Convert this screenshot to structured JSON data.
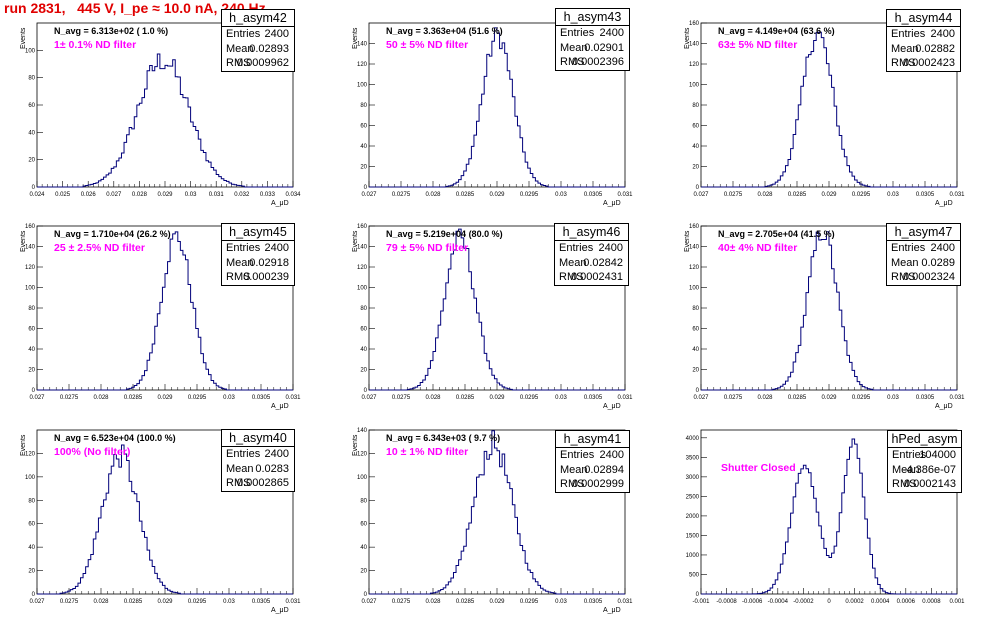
{
  "page_title": "run 2831,   445 V, I_pe ≈ 10.0 nA, 240 Hz",
  "chart_data": [
    {
      "type": "histogram",
      "stats_title": "h_asym42",
      "entries": "2400",
      "mean": "0.02893",
      "rms": "0.0009962",
      "navg": "N_avg = 6.313e+02 ( 1.0 %)",
      "filter_label": "1± 0.1% ND filter",
      "ylabel": "Events",
      "xlabel": "A_μD",
      "xlim": [
        0.024,
        0.034
      ],
      "ylim": [
        0,
        120
      ],
      "xticks": [
        "0.024",
        "0.025",
        "0.026",
        "0.027",
        "0.028",
        "0.029",
        "0.03",
        "0.031",
        "0.032",
        "0.033",
        "0.034"
      ],
      "xtick_values": [
        0.024,
        0.025,
        0.026,
        0.027,
        0.028,
        0.029,
        0.03,
        0.031,
        0.032,
        0.033,
        0.034
      ],
      "yticks": [
        0,
        20,
        40,
        60,
        80,
        100
      ],
      "shape": {
        "gaussians": [
          {
            "mu": 0.02893,
            "sigma": 0.0009962,
            "amp": 93
          }
        ],
        "bins": 100,
        "noise": 0.1
      }
    },
    {
      "type": "histogram",
      "stats_title": "h_asym43",
      "entries": "2400",
      "mean": "0.02901",
      "rms": "0.0002396",
      "navg": "N_avg = 3.363e+04 (51.6 %)",
      "filter_label": "50 ± 5% ND filter",
      "ylabel": "Events",
      "xlabel": "A_μD",
      "xlim": [
        0.027,
        0.031
      ],
      "ylim": [
        0,
        160
      ],
      "xticks": [
        "0.027",
        "0.0275",
        "0.028",
        "0.0285",
        "0.029",
        "0.0295",
        "0.03",
        "0.0305",
        "0.031"
      ],
      "xtick_values": [
        0.027,
        0.0275,
        0.028,
        0.0285,
        0.029,
        0.0295,
        0.03,
        0.0305,
        0.031
      ],
      "yticks": [
        0,
        20,
        40,
        60,
        80,
        100,
        120,
        140
      ],
      "shape": {
        "gaussians": [
          {
            "mu": 0.02901,
            "sigma": 0.0002396,
            "amp": 148
          }
        ],
        "bins": 100,
        "noise": 0.07
      }
    },
    {
      "type": "histogram",
      "stats_title": "h_asym44",
      "entries": "2400",
      "mean": "0.02882",
      "rms": "0.0002423",
      "navg": "N_avg = 4.149e+04 (63.6 %)",
      "filter_label": "63± 5% ND filter",
      "ylabel": "Events",
      "xlabel": "A_μD",
      "xlim": [
        0.027,
        0.031
      ],
      "ylim": [
        0,
        160
      ],
      "xticks": [
        "0.027",
        "0.0275",
        "0.028",
        "0.0285",
        "0.029",
        "0.0295",
        "0.03",
        "0.0305",
        "0.031"
      ],
      "xtick_values": [
        0.027,
        0.0275,
        0.028,
        0.0285,
        0.029,
        0.0295,
        0.03,
        0.0305,
        0.031
      ],
      "yticks": [
        0,
        20,
        40,
        60,
        80,
        100,
        120,
        140,
        160
      ],
      "shape": {
        "gaussians": [
          {
            "mu": 0.02882,
            "sigma": 0.0002423,
            "amp": 150
          }
        ],
        "bins": 100,
        "noise": 0.07
      }
    },
    {
      "type": "histogram",
      "stats_title": "h_asym45",
      "entries": "2400",
      "mean": "0.02918",
      "rms": "0.000239",
      "navg": "N_avg = 1.710e+04 (26.2 %)",
      "filter_label": "25 ± 2.5% ND filter",
      "ylabel": "Events",
      "xlabel": "A_μD",
      "xlim": [
        0.027,
        0.031
      ],
      "ylim": [
        0,
        160
      ],
      "xticks": [
        "0.027",
        "0.0275",
        "0.028",
        "0.0285",
        "0.029",
        "0.0295",
        "0.03",
        "0.0305",
        "0.031"
      ],
      "xtick_values": [
        0.027,
        0.0275,
        0.028,
        0.0285,
        0.029,
        0.0295,
        0.03,
        0.0305,
        0.031
      ],
      "yticks": [
        0,
        20,
        40,
        60,
        80,
        100,
        120,
        140,
        160
      ],
      "shape": {
        "gaussians": [
          {
            "mu": 0.02918,
            "sigma": 0.000239,
            "amp": 150
          }
        ],
        "bins": 100,
        "noise": 0.07
      }
    },
    {
      "type": "histogram",
      "stats_title": "h_asym46",
      "entries": "2400",
      "mean": "0.02842",
      "rms": "0.0002431",
      "navg": "N_avg = 5.219e+04 (80.0 %)",
      "filter_label": "79 ± 5% ND filter",
      "ylabel": "Events",
      "xlabel": "A_μD",
      "xlim": [
        0.027,
        0.031
      ],
      "ylim": [
        0,
        160
      ],
      "xticks": [
        "0.027",
        "0.0275",
        "0.028",
        "0.0285",
        "0.029",
        "0.0295",
        "0.03",
        "0.0305",
        "0.031"
      ],
      "xtick_values": [
        0.027,
        0.0275,
        0.028,
        0.0285,
        0.029,
        0.0295,
        0.03,
        0.0305,
        0.031
      ],
      "yticks": [
        0,
        20,
        40,
        60,
        80,
        100,
        120,
        140,
        160
      ],
      "shape": {
        "gaussians": [
          {
            "mu": 0.02842,
            "sigma": 0.0002431,
            "amp": 148
          }
        ],
        "bins": 100,
        "noise": 0.07
      }
    },
    {
      "type": "histogram",
      "stats_title": "h_asym47",
      "entries": "2400",
      "mean": "0.0289",
      "rms": "0.0002324",
      "navg": "N_avg = 2.705e+04 (41.5 %)",
      "filter_label": "40± 4% ND filter",
      "ylabel": "Events",
      "xlabel": "A_μD",
      "xlim": [
        0.027,
        0.031
      ],
      "ylim": [
        0,
        160
      ],
      "xticks": [
        "0.027",
        "0.0275",
        "0.028",
        "0.0285",
        "0.029",
        "0.0295",
        "0.03",
        "0.0305",
        "0.031"
      ],
      "xtick_values": [
        0.027,
        0.0275,
        0.028,
        0.0285,
        0.029,
        0.0295,
        0.03,
        0.0305,
        0.031
      ],
      "yticks": [
        0,
        20,
        40,
        60,
        80,
        100,
        120,
        140,
        160
      ],
      "shape": {
        "gaussians": [
          {
            "mu": 0.0289,
            "sigma": 0.0002324,
            "amp": 155
          }
        ],
        "bins": 100,
        "noise": 0.07
      }
    },
    {
      "type": "histogram",
      "stats_title": "h_asym40",
      "entries": "2400",
      "mean": "0.0283",
      "rms": "0.0002865",
      "navg": "N_avg = 6.523e+04 (100.0 %)",
      "filter_label": "100% (No filter)",
      "ylabel": "Events",
      "xlabel": "A_μD",
      "xlim": [
        0.027,
        0.031
      ],
      "ylim": [
        0,
        140
      ],
      "xticks": [
        "0.027",
        "0.0275",
        "0.028",
        "0.0285",
        "0.029",
        "0.0295",
        "0.03",
        "0.0305",
        "0.031"
      ],
      "xtick_values": [
        0.027,
        0.0275,
        0.028,
        0.0285,
        0.029,
        0.0295,
        0.03,
        0.0305,
        0.031
      ],
      "yticks": [
        0,
        20,
        40,
        60,
        80,
        100,
        120
      ],
      "shape": {
        "gaussians": [
          {
            "mu": 0.0283,
            "sigma": 0.0002865,
            "amp": 118
          }
        ],
        "bins": 100,
        "noise": 0.09
      }
    },
    {
      "type": "histogram",
      "stats_title": "h_asym41",
      "entries": "2400",
      "mean": "0.02894",
      "rms": "0.0002999",
      "navg": "N_avg = 6.343e+03 ( 9.7 %)",
      "filter_label": "10 ± 1% ND filter",
      "ylabel": "Events",
      "xlabel": "A_μD",
      "xlim": [
        0.027,
        0.031
      ],
      "ylim": [
        0,
        140
      ],
      "xticks": [
        "0.027",
        "0.0275",
        "0.028",
        "0.0285",
        "0.029",
        "0.0295",
        "0.03",
        "0.0305",
        "0.031"
      ],
      "xtick_values": [
        0.027,
        0.0275,
        0.028,
        0.0285,
        0.029,
        0.0295,
        0.03,
        0.0305,
        0.031
      ],
      "yticks": [
        0,
        20,
        40,
        60,
        80,
        100,
        120,
        140
      ],
      "shape": {
        "gaussians": [
          {
            "mu": 0.02894,
            "sigma": 0.0002999,
            "amp": 128
          }
        ],
        "bins": 100,
        "noise": 0.09
      }
    },
    {
      "type": "histogram",
      "stats_title": "hPed_asym",
      "entries": "104000",
      "mean": "-4.386e-07",
      "rms": "0.0002143",
      "navg": "",
      "filter_label": "Shutter Closed",
      "ylabel": "",
      "xlabel": "",
      "xlim": [
        -0.001,
        0.001
      ],
      "ylim": [
        0,
        4200
      ],
      "xticks": [
        "-0.001",
        "-0.0008",
        "-0.0006",
        "-0.0004",
        "-0.0002",
        "0",
        "0.0002",
        "0.0004",
        "0.0006",
        "0.0008",
        "0.001"
      ],
      "xtick_values": [
        -0.001,
        -0.0008,
        -0.0006,
        -0.0004,
        -0.0002,
        0,
        0.0002,
        0.0004,
        0.0006,
        0.0008,
        0.001
      ],
      "yticks": [
        0,
        500,
        1000,
        1500,
        2000,
        2500,
        3000,
        3500,
        4000
      ],
      "shape": {
        "gaussians": [
          {
            "mu": -0.00019,
            "sigma": 0.000105,
            "amp": 3300
          },
          {
            "mu": 0.00019,
            "sigma": 8.5e-05,
            "amp": 3900
          }
        ],
        "bins": 100,
        "noise": 0.02
      }
    }
  ]
}
